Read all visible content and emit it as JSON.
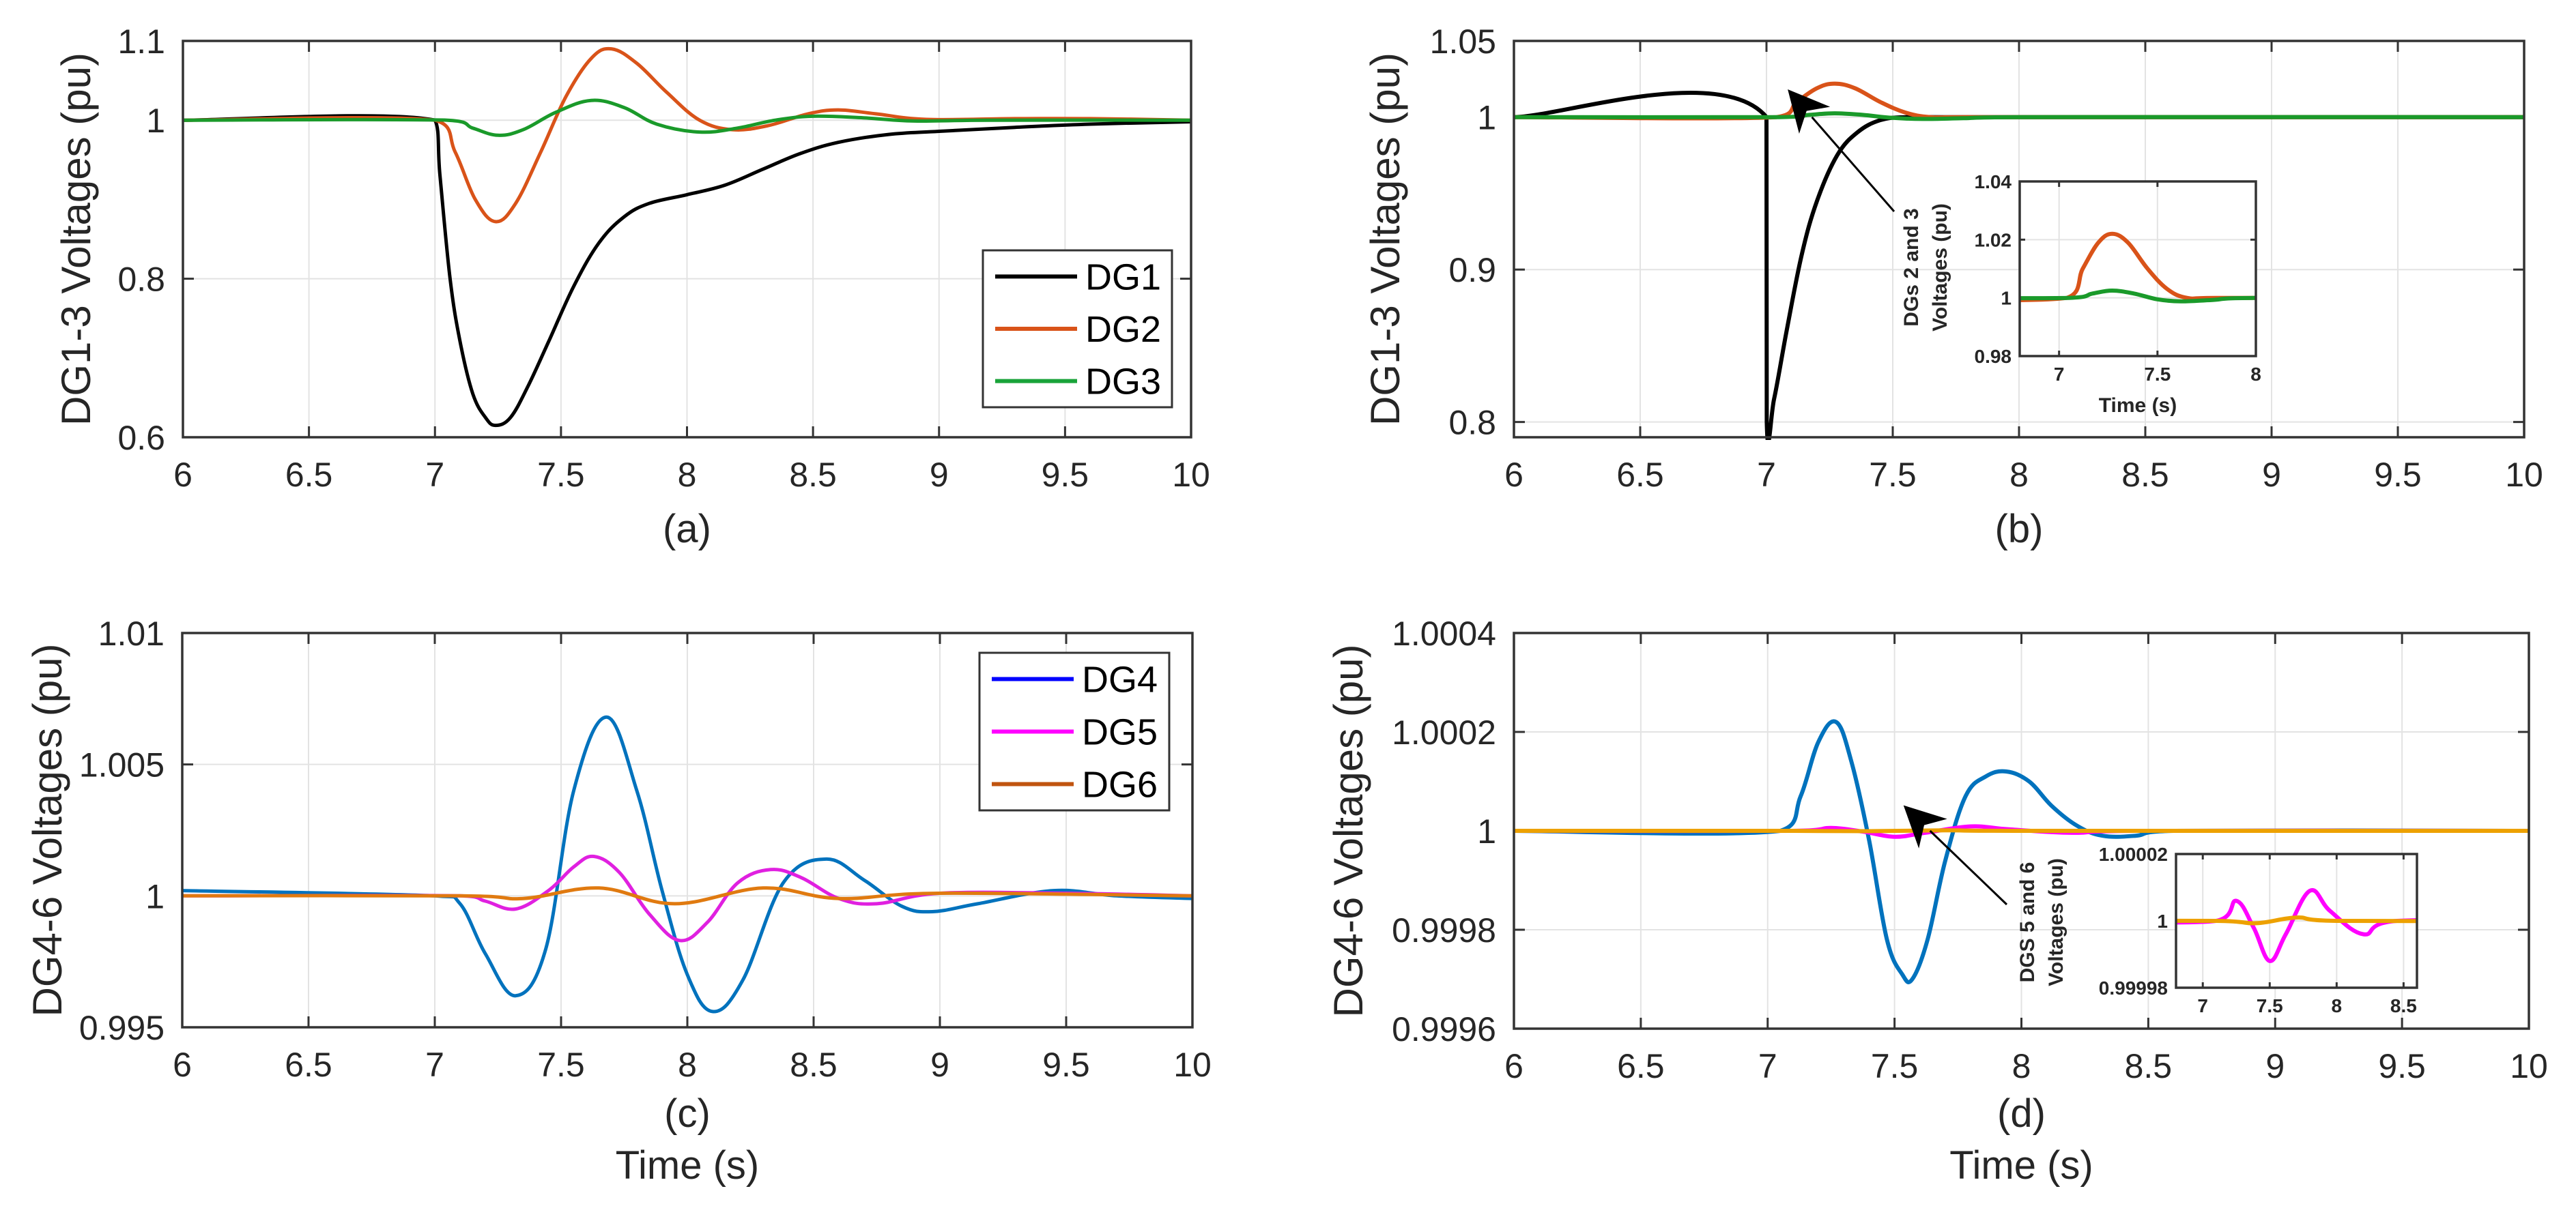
{
  "chart_data": [
    {
      "type": "line",
      "panel_label": "(a)",
      "xlabel": "",
      "ylabel": "DG1-3 Voltages (pu)",
      "xlim": [
        6,
        10
      ],
      "ylim": [
        0.6,
        1.1
      ],
      "xticks": [
        6,
        6.5,
        7,
        7.5,
        8,
        8.5,
        9,
        9.5,
        10
      ],
      "xtick_labels": [
        "6",
        "6.5",
        "7",
        "7.5",
        "8",
        "8.5",
        "9",
        "9.5",
        "10"
      ],
      "yticks": [
        0.6,
        0.8,
        1,
        1.1
      ],
      "ytick_labels": [
        "0.6",
        "0.8",
        "1",
        "1.1"
      ],
      "grid": true,
      "legend": {
        "position": "right-middle",
        "entries": [
          {
            "label": "DG1",
            "color": "#000000"
          },
          {
            "label": "DG2",
            "color": "#d95319"
          },
          {
            "label": "DG3",
            "color": "#1aa33a"
          }
        ]
      },
      "series": [
        {
          "name": "DG1",
          "color": "#000000",
          "x": [
            6,
            7.0,
            7.02,
            7.06,
            7.1,
            7.15,
            7.2,
            7.24,
            7.3,
            7.37,
            7.45,
            7.55,
            7.65,
            7.75,
            7.85,
            8.0,
            8.15,
            8.3,
            8.45,
            8.6,
            8.8,
            9.0,
            9.3,
            9.6,
            10
          ],
          "y": [
            1,
            1,
            0.93,
            0.8,
            0.72,
            0.655,
            0.625,
            0.615,
            0.625,
            0.665,
            0.72,
            0.79,
            0.845,
            0.878,
            0.895,
            0.906,
            0.918,
            0.938,
            0.958,
            0.972,
            0.982,
            0.986,
            0.991,
            0.995,
            0.998
          ]
        },
        {
          "name": "DG2",
          "color": "#d95319",
          "x": [
            6,
            7.0,
            7.08,
            7.16,
            7.24,
            7.32,
            7.42,
            7.52,
            7.62,
            7.7,
            7.8,
            7.92,
            8.05,
            8.18,
            8.32,
            8.48,
            8.6,
            8.75,
            8.95,
            9.3,
            9.6,
            10
          ],
          "y": [
            1,
            1,
            0.96,
            0.9,
            0.872,
            0.895,
            0.96,
            1.03,
            1.078,
            1.09,
            1.072,
            1.035,
            1.0,
            0.988,
            0.993,
            1.008,
            1.013,
            1.008,
            1.001,
            1.002,
            1.002,
            1.0
          ]
        },
        {
          "name": "DG3",
          "color": "#1a9a2a",
          "x": [
            6,
            7.05,
            7.15,
            7.25,
            7.35,
            7.48,
            7.62,
            7.75,
            7.88,
            8.05,
            8.2,
            8.35,
            8.5,
            8.7,
            8.9,
            9.2,
            10
          ],
          "y": [
            1,
            1,
            0.99,
            0.981,
            0.988,
            1.01,
            1.025,
            1.016,
            0.995,
            0.985,
            0.99,
            1.0,
            1.005,
            1.003,
            0.999,
            1.0,
            1.0
          ]
        }
      ]
    },
    {
      "type": "line",
      "panel_label": "(b)",
      "xlabel": "",
      "ylabel": "DG1-3 Voltages (pu)",
      "xlim": [
        6,
        10
      ],
      "ylim": [
        0.79,
        1.05
      ],
      "xticks": [
        6,
        6.5,
        7,
        7.5,
        8,
        8.5,
        9,
        9.5,
        10
      ],
      "xtick_labels": [
        "6",
        "6.5",
        "7",
        "7.5",
        "8",
        "8.5",
        "9",
        "9.5",
        "10"
      ],
      "yticks": [
        0.8,
        0.9,
        1,
        1.05
      ],
      "ytick_labels": [
        "0.8",
        "0.9",
        "1",
        "1.05"
      ],
      "grid": true,
      "series": [
        {
          "name": "DG1",
          "color": "#000000",
          "x": [
            6,
            7.0,
            7.001,
            7.03,
            7.08,
            7.14,
            7.2,
            7.28,
            7.36,
            7.45,
            7.55,
            7.7,
            10
          ],
          "y": [
            1,
            1,
            0.8,
            0.815,
            0.86,
            0.91,
            0.945,
            0.975,
            0.99,
            0.998,
            1.0,
            1.0,
            1.0
          ]
        },
        {
          "name": "DG2",
          "color": "#d95319",
          "x": [
            6,
            7.04,
            7.12,
            7.2,
            7.27,
            7.35,
            7.45,
            7.55,
            7.65,
            7.8,
            10
          ],
          "y": [
            1,
            1,
            1.01,
            1.019,
            1.022,
            1.019,
            1.01,
            1.003,
            1.0,
            1.0,
            1.0
          ]
        },
        {
          "name": "DG3",
          "color": "#1a9a2a",
          "x": [
            6,
            7.05,
            7.17,
            7.27,
            7.38,
            7.5,
            7.62,
            7.78,
            8.0,
            10
          ],
          "y": [
            1,
            1,
            1.0015,
            1.0025,
            1.0015,
            0.9995,
            0.9988,
            0.9993,
            1.0,
            1.0
          ]
        }
      ],
      "annotation": {
        "text": [
          "DGs 2 and 3",
          "Voltages (pu)"
        ],
        "arrow_to": [
          7.18,
          1.0
        ]
      },
      "inset": {
        "xlabel": "Time (s)",
        "ylabel": [
          "DGs 2 and 3",
          "Voltages (pu)"
        ],
        "xlim": [
          6.8,
          8
        ],
        "ylim": [
          0.98,
          1.04
        ],
        "xticks": [
          7,
          7.5,
          8
        ],
        "xtick_labels": [
          "7",
          "7.5",
          "8"
        ],
        "yticks": [
          0.98,
          1,
          1.02,
          1.04
        ],
        "ytick_labels": [
          "0.98",
          "1",
          "1.02",
          "1.04"
        ],
        "series": [
          "DG2",
          "DG3"
        ]
      }
    },
    {
      "type": "line",
      "panel_label": "(c)",
      "xlabel": "Time (s)",
      "ylabel": "DG4-6 Voltages (pu)",
      "xlim": [
        6,
        10
      ],
      "ylim": [
        0.995,
        1.01
      ],
      "xticks": [
        6,
        6.5,
        7,
        7.5,
        8,
        8.5,
        9,
        9.5,
        10
      ],
      "xtick_labels": [
        "6",
        "6.5",
        "7",
        "7.5",
        "8",
        "8.5",
        "9",
        "9.5",
        "10"
      ],
      "yticks": [
        0.995,
        1,
        1.005,
        1.01
      ],
      "ytick_labels": [
        "0.995",
        "1",
        "1.005",
        "1.01"
      ],
      "grid": true,
      "legend": {
        "position": "top-right",
        "entries": [
          {
            "label": "DG4",
            "color": "#0000ff"
          },
          {
            "label": "DG5",
            "color": "#ff00ff"
          },
          {
            "label": "DG6",
            "color": "#c0540f"
          }
        ]
      },
      "series": [
        {
          "name": "DG4",
          "color": "#0072bd",
          "x": [
            6,
            7.0,
            7.1,
            7.2,
            7.32,
            7.44,
            7.55,
            7.68,
            7.8,
            7.9,
            8.0,
            8.1,
            8.22,
            8.38,
            8.55,
            8.7,
            8.85,
            8.97,
            9.15,
            9.45,
            9.7,
            10
          ],
          "y": [
            1.0002,
            1.0,
            0.9997,
            0.9978,
            0.9962,
            0.998,
            1.004,
            1.0068,
            1.004,
            1.0002,
            0.997,
            0.9956,
            0.9968,
            1.0005,
            1.0014,
            1.0006,
            0.9996,
            0.9994,
            0.9997,
            1.0002,
            1.0,
            0.9999
          ]
        },
        {
          "name": "DG5",
          "color": "#e020e0",
          "x": [
            6,
            7.1,
            7.2,
            7.32,
            7.45,
            7.55,
            7.63,
            7.73,
            7.85,
            7.97,
            8.08,
            8.2,
            8.33,
            8.45,
            8.6,
            8.75,
            9.0,
            9.5,
            10
          ],
          "y": [
            1,
            1,
            0.9998,
            0.9995,
            1.0002,
            1.0011,
            1.0015,
            1.0009,
            0.9993,
            0.9983,
            0.999,
            1.0005,
            1.001,
            1.0007,
            0.9999,
            0.9997,
            1.0001,
            1.0001,
            1.0
          ]
        },
        {
          "name": "DG6",
          "color": "#e07a10",
          "x": [
            6,
            7.1,
            7.35,
            7.65,
            7.95,
            8.3,
            8.6,
            9.0,
            10
          ],
          "y": [
            1,
            1,
            0.9999,
            1.0003,
            0.9997,
            1.0003,
            0.9999,
            1.0001,
            1.0
          ]
        }
      ]
    },
    {
      "type": "line",
      "panel_label": "(d)",
      "xlabel": "Time (s)",
      "ylabel": "DG4-6 Voltages (pu)",
      "xlim": [
        6,
        10
      ],
      "ylim": [
        0.9996,
        1.0004
      ],
      "xticks": [
        6,
        6.5,
        7,
        7.5,
        8,
        8.5,
        9,
        9.5,
        10
      ],
      "xtick_labels": [
        "6",
        "6.5",
        "7",
        "7.5",
        "8",
        "8.5",
        "9",
        "9.5",
        "10"
      ],
      "yticks": [
        0.9996,
        0.9998,
        1,
        1.0002,
        1.0004
      ],
      "ytick_labels": [
        "0.9996",
        "0.9998",
        "1",
        "1.0002",
        "1.0004"
      ],
      "grid": true,
      "series": [
        {
          "name": "DG4",
          "color": "#0072bd",
          "x": [
            6,
            7.05,
            7.13,
            7.2,
            7.27,
            7.33,
            7.4,
            7.47,
            7.53,
            7.57,
            7.63,
            7.7,
            7.78,
            7.86,
            7.94,
            8.03,
            8.12,
            8.22,
            8.32,
            8.45,
            8.6,
            10
          ],
          "y": [
            1,
            1,
            1.00007,
            1.00018,
            1.00022,
            1.00014,
            0.99998,
            0.99978,
            0.99971,
            0.9997,
            0.99978,
            0.99994,
            1.00007,
            1.00011,
            1.00012,
            1.0001,
            1.00005,
            1.00001,
            0.99999,
            0.99999,
            1.0,
            1.0
          ]
        },
        {
          "name": "DG5",
          "color": "#ff00ff",
          "x": [
            6,
            7.1,
            7.25,
            7.38,
            7.5,
            7.62,
            7.8,
            7.95,
            8.2,
            8.45,
            10
          ],
          "y": [
            1,
            1,
            1.000006,
            0.999998,
            0.999988,
            0.999996,
            1.000009,
            1.000003,
            0.999996,
            1.0,
            1.0
          ]
        },
        {
          "name": "DG6",
          "color": "#eda100",
          "x": [
            6,
            7.1,
            7.4,
            7.7,
            8.0,
            10
          ],
          "y": [
            1,
            1,
            0.9999993,
            1.000001,
            1.0,
            1.0
          ]
        }
      ],
      "annotation": {
        "text": [
          "DGS 5 and 6",
          "Voltages (pu)"
        ],
        "arrow_to": [
          7.64,
          1.0
        ]
      },
      "inset": {
        "xlabel": "",
        "ylabel": [
          "DGS 5 and 6",
          "Voltages (pu)"
        ],
        "xlim": [
          6.8,
          8.6
        ],
        "ylim": [
          0.99998,
          1.00002
        ],
        "xticks": [
          7,
          7.5,
          8,
          8.5
        ],
        "xtick_labels": [
          "7",
          "7.5",
          "8",
          "8.5"
        ],
        "yticks": [
          0.99998,
          1,
          1.00002
        ],
        "ytick_labels": [
          "0.99998",
          "1",
          "1.00002"
        ],
        "series": [
          "DG5",
          "DG6"
        ]
      }
    }
  ]
}
